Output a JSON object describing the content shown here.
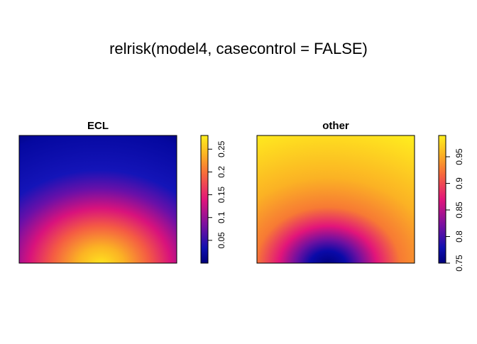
{
  "title": "relrisk(model4, casecontrol = FALSE)",
  "chart_data": [
    {
      "type": "heatmap",
      "title": "ECL",
      "ylim": [
        0,
        0.28
      ],
      "yticks": [
        0.05,
        0.1,
        0.15,
        0.2,
        0.25
      ]
    },
    {
      "type": "heatmap",
      "title": "other",
      "ylim": [
        0.75,
        0.99
      ],
      "yticks": [
        0.75,
        0.8,
        0.85,
        0.9,
        0.95
      ]
    }
  ]
}
